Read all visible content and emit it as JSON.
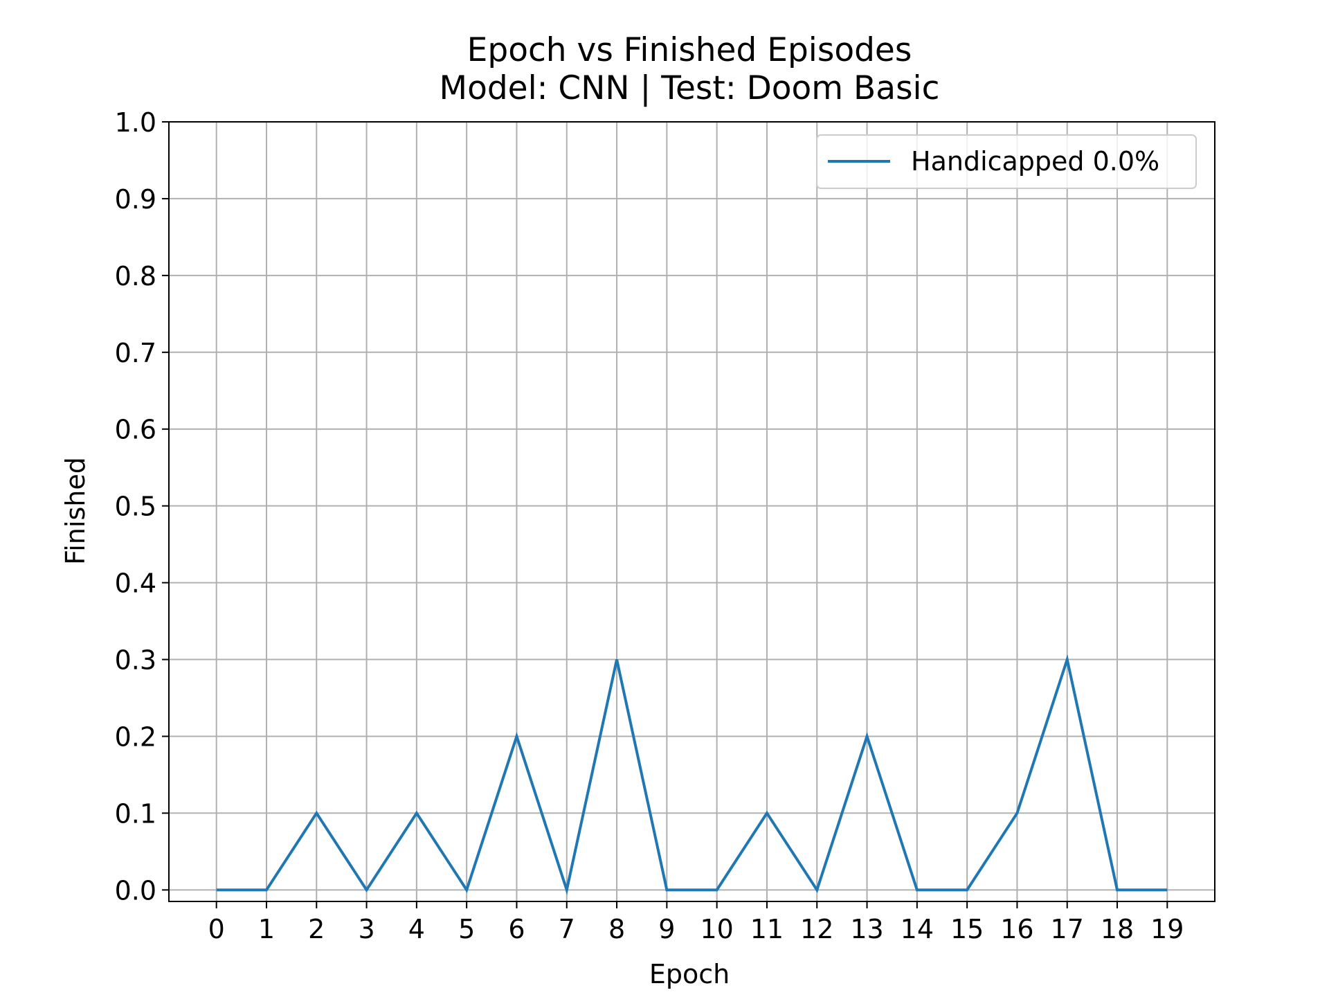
{
  "chart_data": {
    "type": "line",
    "title": "Epoch vs Finished Episodes",
    "subtitle": "Model: CNN | Test: Doom Basic",
    "xlabel": "Epoch",
    "ylabel": "Finished",
    "x": [
      0,
      1,
      2,
      3,
      4,
      5,
      6,
      7,
      8,
      9,
      10,
      11,
      12,
      13,
      14,
      15,
      16,
      17,
      18,
      19
    ],
    "x_tick_labels": [
      "0",
      "1",
      "2",
      "3",
      "4",
      "5",
      "6",
      "7",
      "8",
      "9",
      "10",
      "11",
      "12",
      "13",
      "14",
      "15",
      "16",
      "17",
      "18",
      "19"
    ],
    "y_ticks": [
      0.0,
      0.1,
      0.2,
      0.3,
      0.4,
      0.5,
      0.6,
      0.7,
      0.8,
      0.9,
      1.0
    ],
    "y_tick_labels": [
      "0.0",
      "0.1",
      "0.2",
      "0.3",
      "0.4",
      "0.5",
      "0.6",
      "0.7",
      "0.8",
      "0.9",
      "1.0"
    ],
    "xlim": [
      -0.95,
      19.95
    ],
    "ylim": [
      -0.015,
      1.0
    ],
    "grid": true,
    "legend_position": "top-right",
    "series": [
      {
        "name": "Handicapped 0.0%",
        "color": "#1f77b4",
        "values": [
          0.0,
          0.0,
          0.1,
          0.0,
          0.1,
          0.0,
          0.2,
          0.0,
          0.3,
          0.0,
          0.0,
          0.1,
          0.0,
          0.2,
          0.0,
          0.0,
          0.1,
          0.3,
          0.0,
          0.0
        ]
      }
    ]
  }
}
